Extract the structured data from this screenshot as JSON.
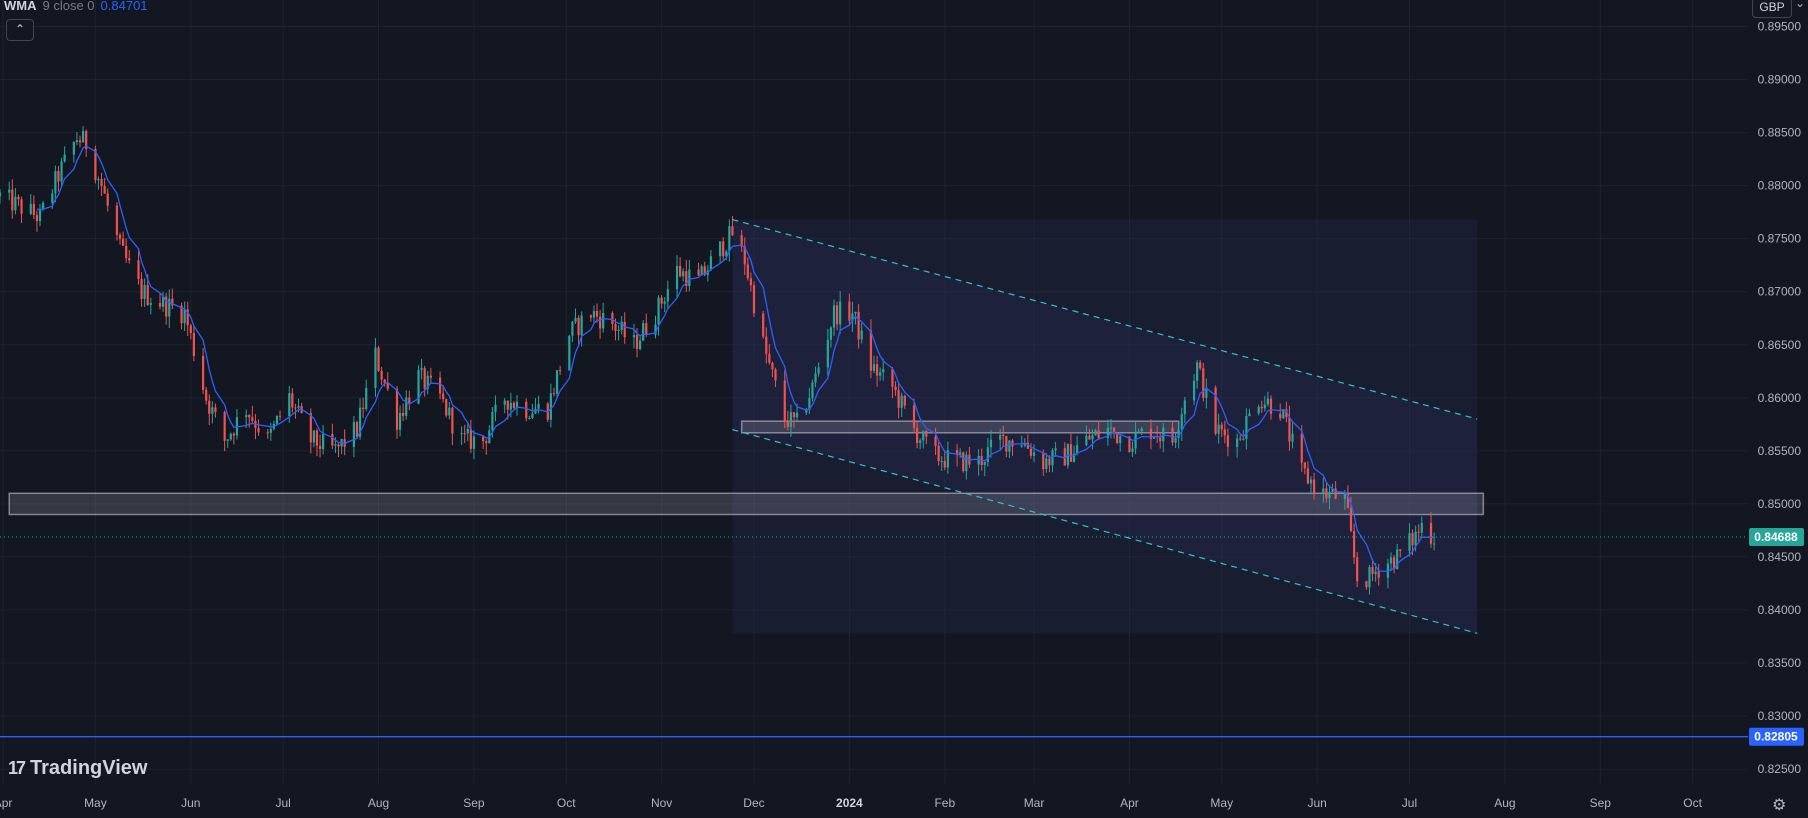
{
  "indicator": {
    "name": "WMA",
    "params": "9 close 0",
    "value": "0.84701"
  },
  "currency": "GBP",
  "price_badges": {
    "last": "0.84688",
    "blue_line": "0.82805"
  },
  "logo": {
    "text": "TradingView"
  },
  "colors": {
    "background": "#131722",
    "grid": "#1e222d",
    "up": "#26a69a",
    "down": "#ef5350",
    "wma": "#2962ff",
    "channel": "#2ec4c4",
    "zone": "#d1d4dc",
    "hline": "#2962ff"
  },
  "chart_data": {
    "type": "candlestick",
    "symbol_currency": "GBP",
    "y_ticks": [
      "0.89500",
      "0.89000",
      "0.88500",
      "0.88000",
      "0.87500",
      "0.87000",
      "0.86500",
      "0.86000",
      "0.85500",
      "0.85000",
      "0.84500",
      "0.84000",
      "0.83500",
      "0.83000",
      "0.82500"
    ],
    "ylim": [
      0.8235,
      0.8975
    ],
    "x_ticks": [
      "Apr",
      "May",
      "Jun",
      "Jul",
      "Aug",
      "Sep",
      "Oct",
      "Nov",
      "Dec",
      "2024",
      "Feb",
      "Mar",
      "Apr",
      "May",
      "Jun",
      "Jul",
      "Aug",
      "Sep",
      "Oct"
    ],
    "x_tick_dates": [
      "2023-04-01",
      "2023-05-01",
      "2023-06-01",
      "2023-07-01",
      "2023-08-01",
      "2023-09-01",
      "2023-10-01",
      "2023-11-01",
      "2023-12-01",
      "2024-01-01",
      "2024-02-01",
      "2024-03-01",
      "2024-04-01",
      "2024-05-01",
      "2024-06-01",
      "2024-07-01",
      "2024-08-01",
      "2024-09-01",
      "2024-10-01"
    ],
    "xlim": [
      "2023-03-31",
      "2024-10-19"
    ],
    "last_price": 0.84688,
    "horizontal_line": 0.82805,
    "wma_period": 9,
    "anchors": [
      [
        "2023-03-31",
        0.879
      ],
      [
        "2023-04-13",
        0.877
      ],
      [
        "2023-04-19",
        0.881
      ],
      [
        "2023-04-25",
        0.8845
      ],
      [
        "2023-04-28",
        0.884
      ],
      [
        "2023-05-03",
        0.88
      ],
      [
        "2023-05-09",
        0.874
      ],
      [
        "2023-05-16",
        0.87
      ],
      [
        "2023-05-22",
        0.869
      ],
      [
        "2023-05-30",
        0.868
      ],
      [
        "2023-06-06",
        0.86
      ],
      [
        "2023-06-12",
        0.856
      ],
      [
        "2023-06-19",
        0.859
      ],
      [
        "2023-06-26",
        0.856
      ],
      [
        "2023-07-03",
        0.86
      ],
      [
        "2023-07-10",
        0.856
      ],
      [
        "2023-07-18",
        0.855
      ],
      [
        "2023-07-25",
        0.857
      ],
      [
        "2023-07-31",
        0.864
      ],
      [
        "2023-08-07",
        0.858
      ],
      [
        "2023-08-14",
        0.862
      ],
      [
        "2023-08-21",
        0.86
      ],
      [
        "2023-08-28",
        0.856
      ],
      [
        "2023-09-04",
        0.856
      ],
      [
        "2023-09-11",
        0.86
      ],
      [
        "2023-09-18",
        0.859
      ],
      [
        "2023-09-25",
        0.859
      ],
      [
        "2023-10-02",
        0.866
      ],
      [
        "2023-10-09",
        0.868
      ],
      [
        "2023-10-16",
        0.867
      ],
      [
        "2023-10-23",
        0.865
      ],
      [
        "2023-10-30",
        0.868
      ],
      [
        "2023-11-06",
        0.872
      ],
      [
        "2023-11-13",
        0.871
      ],
      [
        "2023-11-20",
        0.874
      ],
      [
        "2023-11-24",
        0.8755
      ],
      [
        "2023-11-28",
        0.873
      ],
      [
        "2023-12-04",
        0.865
      ],
      [
        "2023-12-11",
        0.858
      ],
      [
        "2023-12-15",
        0.8575
      ],
      [
        "2023-12-20",
        0.861
      ],
      [
        "2023-12-27",
        0.868
      ],
      [
        "2024-01-02",
        0.868
      ],
      [
        "2024-01-08",
        0.863
      ],
      [
        "2024-01-15",
        0.861
      ],
      [
        "2024-01-22",
        0.857
      ],
      [
        "2024-01-29",
        0.8545
      ],
      [
        "2024-02-05",
        0.854
      ],
      [
        "2024-02-12",
        0.854
      ],
      [
        "2024-02-19",
        0.856
      ],
      [
        "2024-02-26",
        0.856
      ],
      [
        "2024-03-04",
        0.854
      ],
      [
        "2024-03-11",
        0.8545
      ],
      [
        "2024-03-18",
        0.856
      ],
      [
        "2024-03-25",
        0.857
      ],
      [
        "2024-04-01",
        0.856
      ],
      [
        "2024-04-08",
        0.857
      ],
      [
        "2024-04-15",
        0.856
      ],
      [
        "2024-04-19",
        0.86
      ],
      [
        "2024-04-23",
        0.863
      ],
      [
        "2024-04-29",
        0.857
      ],
      [
        "2024-05-06",
        0.856
      ],
      [
        "2024-05-13",
        0.86
      ],
      [
        "2024-05-20",
        0.859
      ],
      [
        "2024-05-27",
        0.853
      ],
      [
        "2024-06-03",
        0.851
      ],
      [
        "2024-06-10",
        0.8505
      ],
      [
        "2024-06-14",
        0.843
      ],
      [
        "2024-06-18",
        0.843
      ],
      [
        "2024-06-21",
        0.844
      ],
      [
        "2024-06-27",
        0.845
      ],
      [
        "2024-07-03",
        0.847
      ],
      [
        "2024-07-05",
        0.848
      ],
      [
        "2024-07-09",
        0.8469
      ]
    ],
    "annotations": {
      "support_zone": {
        "start": "2023-04-03",
        "end": "2024-07-25",
        "low": 0.849,
        "high": 0.851
      },
      "resistance_zone": {
        "start": "2023-11-27",
        "end": "2024-04-17",
        "low": 0.8567,
        "high": 0.8578
      },
      "channel_upper": [
        [
          "2023-11-24",
          0.8768
        ],
        [
          "2024-07-23",
          0.858
        ]
      ],
      "channel_lower": [
        [
          "2023-11-24",
          0.857
        ],
        [
          "2024-07-23",
          0.8378
        ]
      ]
    }
  }
}
